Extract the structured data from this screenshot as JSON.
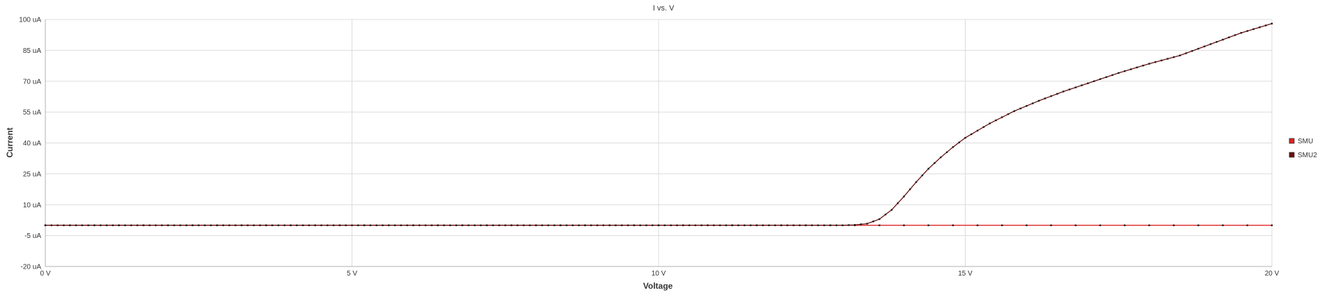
{
  "chart_data": {
    "type": "line",
    "title": "I vs. V",
    "xlabel": "Voltage",
    "ylabel": "Current",
    "xlim": [
      0,
      20
    ],
    "ylim": [
      -20,
      100
    ],
    "x_ticks": [
      {
        "value": 0,
        "label": "0 V"
      },
      {
        "value": 5,
        "label": "5 V"
      },
      {
        "value": 10,
        "label": "10 V"
      },
      {
        "value": 15,
        "label": "15 V"
      },
      {
        "value": 20,
        "label": "20 V"
      }
    ],
    "y_ticks": [
      {
        "value": 100,
        "label": "100 uA"
      },
      {
        "value": 85,
        "label": "85 uA"
      },
      {
        "value": 70,
        "label": "70 uA"
      },
      {
        "value": 55,
        "label": "55 uA"
      },
      {
        "value": 40,
        "label": "40 uA"
      },
      {
        "value": 25,
        "label": "25 uA"
      },
      {
        "value": 10,
        "label": "10 uA"
      },
      {
        "value": -5,
        "label": "-5 uA"
      },
      {
        "value": -20,
        "label": "-20 uA"
      }
    ],
    "grid": true,
    "legend_position": "right",
    "series": [
      {
        "name": "SMU",
        "color": "#e02020",
        "x": [
          0,
          20
        ],
        "y": [
          0,
          0
        ],
        "marker_step": 0.4
      },
      {
        "name": "SMU2",
        "color": "#6b0f0f",
        "x": [
          0,
          13.0,
          13.2,
          13.4,
          13.6,
          13.8,
          14.0,
          14.2,
          14.4,
          14.6,
          14.8,
          15.0,
          15.4,
          15.8,
          16.2,
          16.6,
          17.0,
          17.5,
          18.0,
          18.5,
          19.0,
          19.5,
          20.0
        ],
        "y": [
          0,
          0,
          0.2,
          0.8,
          3,
          7.5,
          14,
          21,
          27.5,
          33,
          38,
          42.5,
          49.5,
          55.5,
          60.5,
          65,
          69,
          74,
          78.5,
          82.5,
          88,
          93.5,
          98
        ],
        "marker_step": 0.1
      }
    ]
  }
}
